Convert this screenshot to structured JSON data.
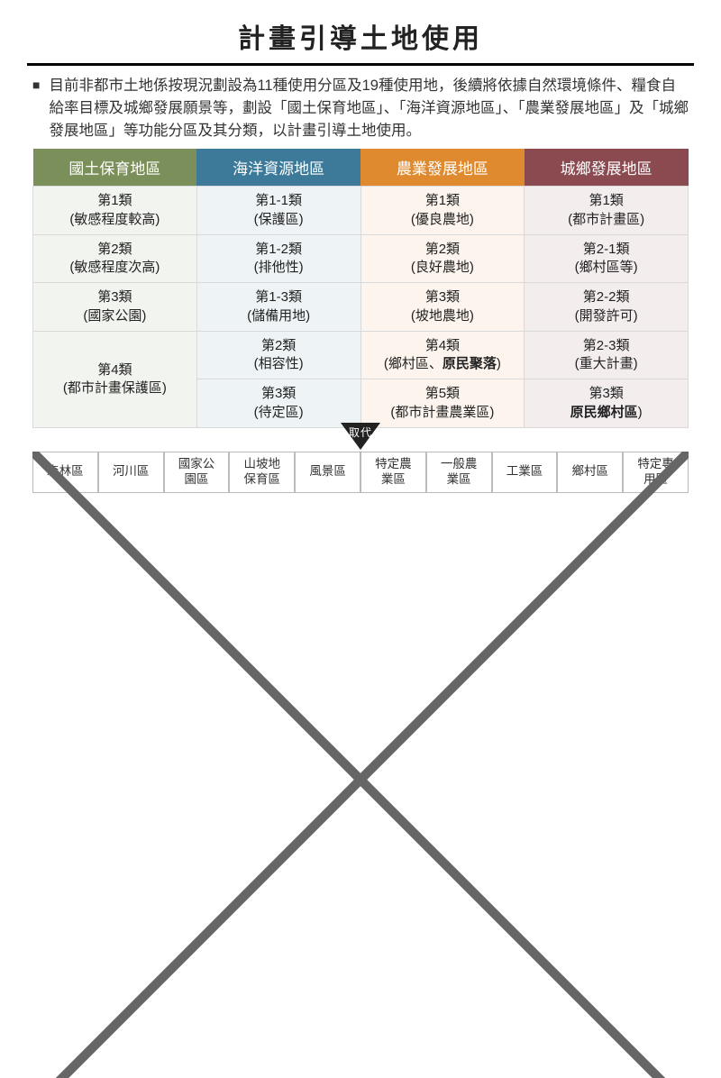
{
  "title": "計畫引導土地使用",
  "paragraph": "目前非都市土地係按現況劃設為11種使用分區及19種使用地，後續將依據自然環境條件、糧食自給率目標及城鄉發展願景等，劃設「國土保育地區」、「海洋資源地區」、「農業發展地區」及「城鄉發展地區」等功能分區及其分類，以計畫引導土地使用。",
  "table": {
    "headers": [
      {
        "label": "國土保育地區",
        "bg": "#7b8f5a"
      },
      {
        "label": "海洋資源地區",
        "bg": "#3d7a99"
      },
      {
        "label": "農業發展地區",
        "bg": "#e08a2f"
      },
      {
        "label": "城鄉發展地區",
        "bg": "#8a4a4f"
      }
    ],
    "col_bg": [
      "#f2f4ef",
      "#eef4f6",
      "#fdf5ed",
      "#f3edee"
    ],
    "rows": [
      [
        {
          "l1": "第1類",
          "l2": "(敏感程度較高)"
        },
        {
          "l1": "第1-1類",
          "l2": "(保護區)"
        },
        {
          "l1": "第1類",
          "l2": "(優良農地)"
        },
        {
          "l1": "第1類",
          "l2": "(都市計畫區)"
        }
      ],
      [
        {
          "l1": "第2類",
          "l2": "(敏感程度次高)"
        },
        {
          "l1": "第1-2類",
          "l2": "(排他性)"
        },
        {
          "l1": "第2類",
          "l2": "(良好農地)"
        },
        {
          "l1": "第2-1類",
          "l2": "(鄉村區等)"
        }
      ],
      [
        {
          "l1": "第3類",
          "l2": "(國家公園)"
        },
        {
          "l1": "第1-3類",
          "l2": "(儲備用地)"
        },
        {
          "l1": "第3類",
          "l2": "(坡地農地)"
        },
        {
          "l1": "第2-2類",
          "l2": "(開發許可)"
        }
      ],
      [
        {
          "l1": "第4類",
          "l2": "(都市計畫保護區)",
          "rowspan": 2
        },
        {
          "l1": "第2類",
          "l2": "(相容性)"
        },
        {
          "l1": "第4類",
          "l2_html": "(鄉村區、<b>原民聚落</b>)"
        },
        {
          "l1": "第2-3類",
          "l2": "(重大計畫)"
        }
      ],
      [
        null,
        {
          "l1": "第3類",
          "l2": "(待定區)"
        },
        {
          "l1": "第5類",
          "l2": "(都市計畫農業區)"
        },
        {
          "l1": "第3類",
          "l2_html": "<b>原民鄉村區</b>)"
        }
      ]
    ]
  },
  "replace_label": "取代",
  "old_zones": [
    "森林區",
    "河川區",
    "國家公\n園區",
    "山坡地\n保育區",
    "風景區",
    "特定農\n業區",
    "一般農\n業區",
    "工業區",
    "鄉村區",
    "特定專\n用區"
  ]
}
